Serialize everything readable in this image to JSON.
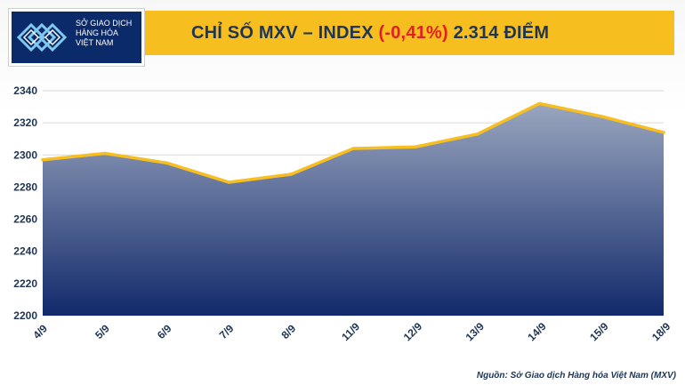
{
  "header": {
    "title_prefix": "CHỈ SỐ MXV – INDEX ",
    "title_change": "(-0,41%)",
    "title_suffix": " 2.314 ĐIỂM"
  },
  "logo": {
    "line1": "SỞ GIAO DỊCH",
    "line2": "HÀNG HÓA",
    "line3": "VIỆT NAM"
  },
  "source": "Nguồn: Sở Giao dịch Hàng hóa Việt Nam (MXV)",
  "colors": {
    "title_bar": "#f6be1f",
    "title_text": "#1f3553",
    "change_negative": "#e31e24",
    "line": "#f6be1f",
    "area_top": "#9aa6bf",
    "area_bottom": "#122a6b"
  },
  "chart_data": {
    "type": "area",
    "categories": [
      "4/9",
      "5/9",
      "6/9",
      "7/9",
      "8/9",
      "11/9",
      "12/9",
      "13/9",
      "14/9",
      "15/9",
      "18/9"
    ],
    "values": [
      2297,
      2301,
      2295,
      2283,
      2288,
      2304,
      2305,
      2313,
      2332,
      2324,
      2314
    ],
    "ylim": [
      2200,
      2340
    ],
    "yticks": [
      2200,
      2220,
      2240,
      2260,
      2280,
      2300,
      2320,
      2340
    ],
    "grid": true
  }
}
